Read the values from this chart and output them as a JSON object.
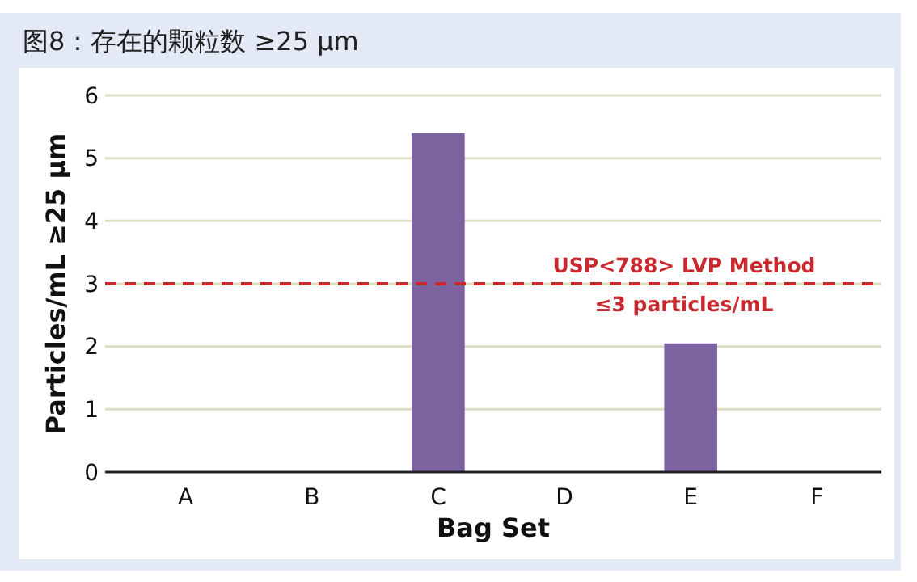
{
  "chart_data": {
    "type": "bar",
    "title": "图8：存在的颗粒数 ≥25 µm",
    "xlabel": "Bag Set",
    "ylabel": "Particles/mL ≥25 µm",
    "categories": [
      "A",
      "B",
      "C",
      "D",
      "E",
      "F"
    ],
    "values": [
      0,
      0,
      5.4,
      0,
      2.05,
      0
    ],
    "color": "#7d62a0",
    "ylim": [
      0,
      6
    ],
    "yticks": [
      0,
      1,
      2,
      3,
      4,
      5,
      6
    ],
    "grid": "y",
    "ref_lines": [
      {
        "axis": "y",
        "value": 3,
        "label": "USP<788> LVP Method\n≤3 particles/mL",
        "color": "#c8282e",
        "line_style": "dashed"
      }
    ]
  }
}
